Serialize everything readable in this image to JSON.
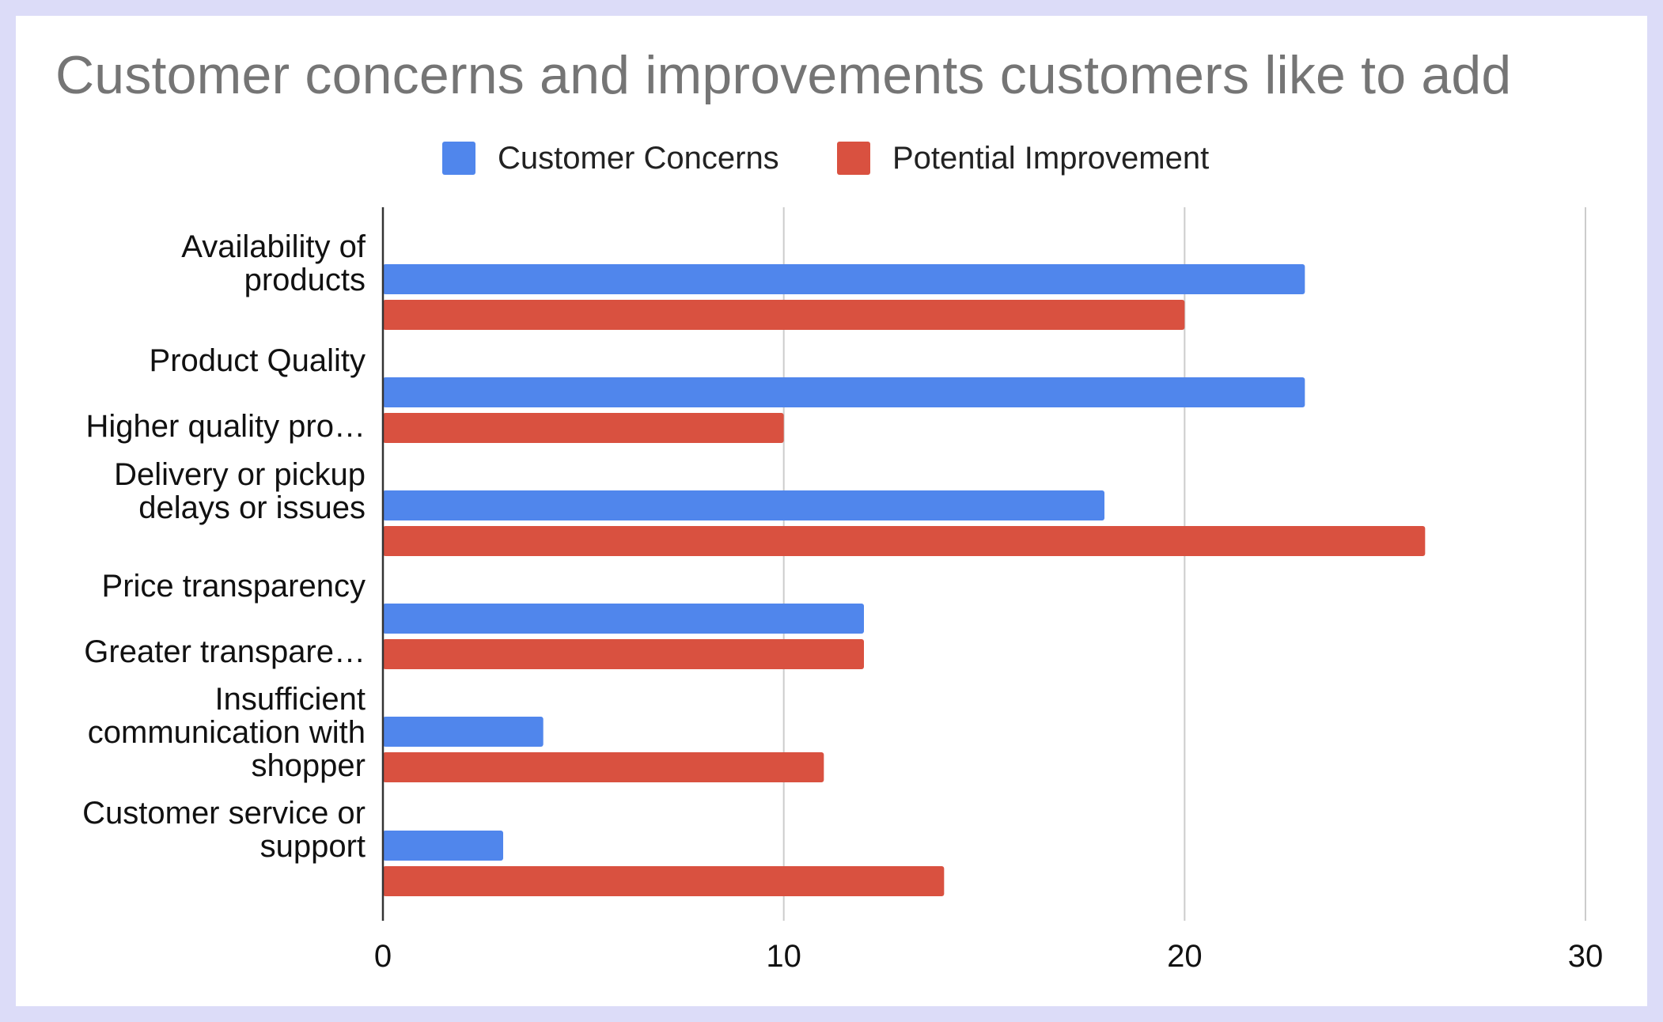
{
  "chart_data": {
    "type": "bar",
    "orientation": "horizontal",
    "title": "Customer concerns and improvements customers like to add",
    "xlabel": "",
    "ylabel": "",
    "xlim": [
      0,
      30
    ],
    "x_ticks": [
      "0",
      "10",
      "20",
      "30"
    ],
    "grid": true,
    "legend_position": "top",
    "categories": [
      [
        "Availability of",
        "products"
      ],
      [
        "Product Quality"
      ],
      [
        "Higher quality pro…"
      ],
      [
        "Delivery or pickup",
        "delays or issues"
      ],
      [
        "Price transparency"
      ],
      [
        "Greater transpare…"
      ],
      [
        "Insufficient",
        "communication with",
        "shopper"
      ],
      [
        "Customer service or",
        "support"
      ]
    ],
    "rows": [
      {
        "category": 0,
        "series": 0,
        "value": 23
      },
      {
        "category": 0,
        "series": 1,
        "value": 20
      },
      {
        "category": 1,
        "series": 0,
        "value": 23
      },
      {
        "category": 2,
        "series": 1,
        "value": 10
      },
      {
        "category": 3,
        "series": 0,
        "value": 18
      },
      {
        "category": 3,
        "series": 1,
        "value": 26
      },
      {
        "category": 4,
        "series": 0,
        "value": 12
      },
      {
        "category": 5,
        "series": 1,
        "value": 12
      },
      {
        "category": 6,
        "series": 0,
        "value": 4
      },
      {
        "category": 6,
        "series": 1,
        "value": 11
      },
      {
        "category": 7,
        "series": 0,
        "value": 3
      },
      {
        "category": 7,
        "series": 1,
        "value": 14
      }
    ],
    "series": [
      {
        "name": "Customer Concerns",
        "color": "#5086ec"
      },
      {
        "name": "Potential Improvement",
        "color": "#d95140"
      }
    ]
  }
}
